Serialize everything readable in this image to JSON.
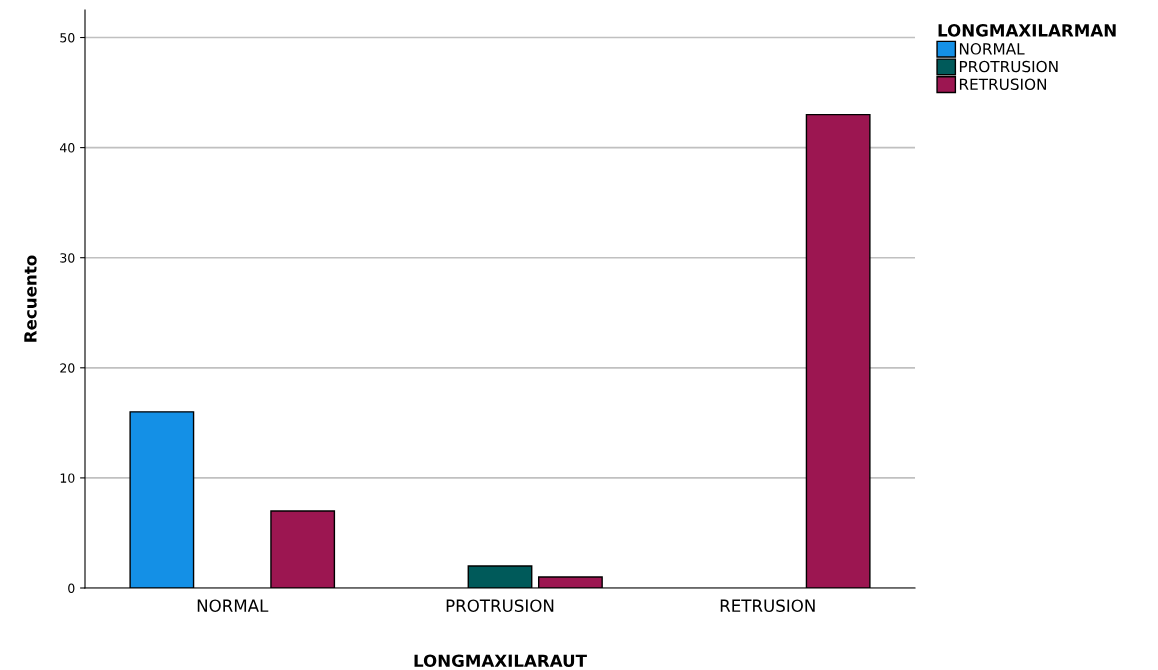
{
  "chart_data": {
    "type": "bar",
    "xlabel": "LONGMAXILARAUT",
    "ylabel": "Recuento",
    "legend_title": "LONGMAXILARMAN",
    "categories": [
      "NORMAL",
      "PROTRUSION",
      "RETRUSION"
    ],
    "series": [
      {
        "name": "NORMAL",
        "color": "#1490e6",
        "values": [
          16,
          0,
          0
        ]
      },
      {
        "name": "PROTRUSION",
        "color": "#005a5a",
        "values": [
          0,
          2,
          0
        ]
      },
      {
        "name": "RETRUSION",
        "color": "#9c1651",
        "values": [
          7,
          1,
          43
        ]
      }
    ],
    "ylim": [
      0,
      52.5
    ],
    "yticks": [
      0,
      10,
      20,
      30,
      40,
      50
    ],
    "grid": "y",
    "legend": "top right"
  }
}
